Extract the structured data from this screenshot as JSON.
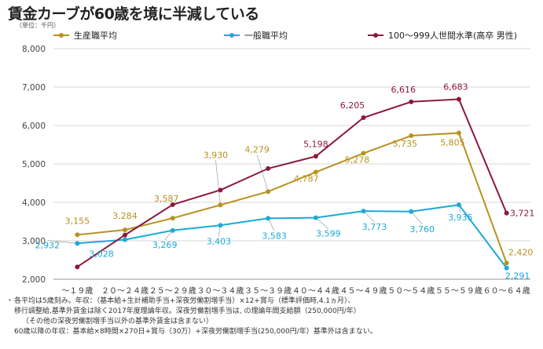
{
  "title": "賃金カーブが60歳を境に半減している",
  "unit_label": "（単位：千円）",
  "chart_data": {
    "type": "line",
    "categories": [
      "～１９歳",
      "２０～２４歳",
      "２５～２９歳",
      "３０～３４歳",
      "３５～３９歳",
      "４０～４４歳",
      "４５～４９歳",
      "５０～５４歳",
      "５５～５９歳",
      "６０～６４歳"
    ],
    "series": [
      {
        "name": "生産職平均",
        "color": "#b8921e",
        "values": [
          3155,
          3284,
          3587,
          3930,
          4279,
          4787,
          5278,
          5735,
          5805,
          2420
        ],
        "labels": [
          "3,155",
          "3,284",
          "3,587",
          "3,930",
          "4,279",
          "4,787",
          "5,278",
          "5,735",
          "5,805",
          "2,420"
        ]
      },
      {
        "name": "一般職平均",
        "color": "#1aaad8",
        "values": [
          2932,
          3028,
          3269,
          3403,
          3583,
          3599,
          3773,
          3760,
          3935,
          2291
        ],
        "labels": [
          "2,932",
          "3,028",
          "3,269",
          "3,403",
          "3,583",
          "3,599",
          "3,773",
          "3,760",
          "3,935",
          "2,291"
        ]
      },
      {
        "name": "100～999人世間水準(高卒 男性)",
        "color": "#8b1a3a",
        "values": [
          2320,
          3150,
          3940,
          4320,
          4880,
          5198,
          6205,
          6616,
          6683,
          3721
        ],
        "labels": [
          "",
          "",
          "",
          "",
          "",
          "5,198",
          "6,205",
          "6,616",
          "6,683",
          "3,721"
        ]
      }
    ],
    "y_ticks": [
      "2,000",
      "3,000",
      "4,000",
      "5,000",
      "6,000",
      "7,000",
      "8,000"
    ],
    "y_tick_values": [
      2000,
      3000,
      4000,
      5000,
      6000,
      7000,
      8000
    ],
    "ylim": [
      2000,
      8000
    ],
    "grid": true,
    "legend_position": "top"
  },
  "notes": [
    "各平均は5歳刻み。年収：（基本給+生計補助手当+深夜労働割増手当）×12+賞与（標準評価時,4.1ヵ月）、",
    "移行調整給,基準外賃金は除く2017年度理論年収。深夜労働割増手当は, の理論年間支給額（250,000円/年）",
    "（その他の深夜労働割増手当以外の基準外賃金は含まない）",
    "60歳以降の年収：基本給×8時間×270日+賞与（30万）+深夜労働割増手当(250,000円/年）基準外は含まない。"
  ]
}
